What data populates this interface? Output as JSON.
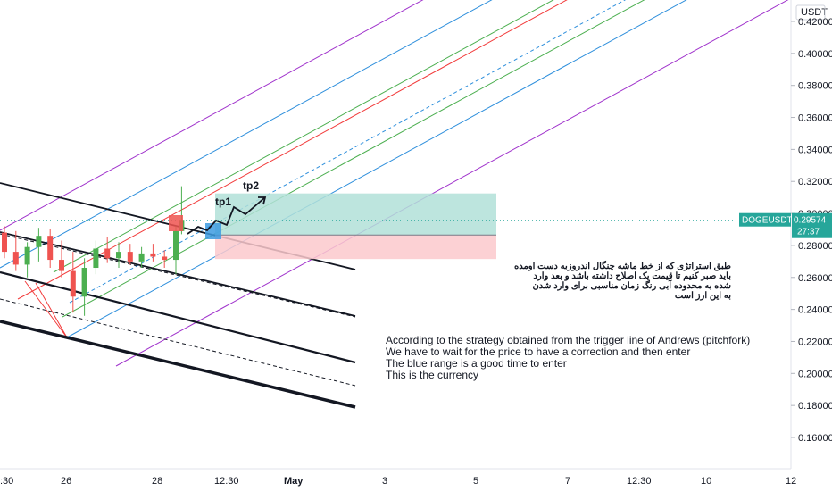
{
  "chart_data": {
    "type": "candlestick",
    "symbol": "DOGEUSDT",
    "currency": "USDT",
    "last_price": "0.29574",
    "countdown": "27:37",
    "y_ticks": [
      "0.42000",
      "0.40000",
      "0.38000",
      "0.36000",
      "0.34000",
      "0.32000",
      "0.30000",
      "0.28000",
      "0.26000",
      "0.24000",
      "0.22000",
      "0.20000",
      "0.18000",
      "0.16000"
    ],
    "x_ticks": [
      ":30",
      "26",
      "28",
      "12:30",
      "May",
      "3",
      "5",
      "7",
      "12:30",
      "10",
      "12"
    ],
    "ylim": [
      0.145,
      0.425
    ],
    "candles": [
      {
        "t": 0.0,
        "o": 0.288,
        "h": 0.292,
        "l": 0.272,
        "c": 0.276
      },
      {
        "t": 0.2,
        "o": 0.276,
        "h": 0.289,
        "l": 0.264,
        "c": 0.268
      },
      {
        "t": 0.4,
        "o": 0.268,
        "h": 0.282,
        "l": 0.26,
        "c": 0.279
      },
      {
        "t": 0.6,
        "o": 0.279,
        "h": 0.291,
        "l": 0.27,
        "c": 0.286
      },
      {
        "t": 0.8,
        "o": 0.286,
        "h": 0.29,
        "l": 0.266,
        "c": 0.271
      },
      {
        "t": 1.0,
        "o": 0.271,
        "h": 0.283,
        "l": 0.26,
        "c": 0.264
      },
      {
        "t": 1.2,
        "o": 0.264,
        "h": 0.276,
        "l": 0.238,
        "c": 0.248
      },
      {
        "t": 1.4,
        "o": 0.248,
        "h": 0.272,
        "l": 0.236,
        "c": 0.266
      },
      {
        "t": 1.6,
        "o": 0.266,
        "h": 0.283,
        "l": 0.262,
        "c": 0.278
      },
      {
        "t": 1.8,
        "o": 0.278,
        "h": 0.285,
        "l": 0.269,
        "c": 0.272
      },
      {
        "t": 2.0,
        "o": 0.272,
        "h": 0.282,
        "l": 0.266,
        "c": 0.276
      },
      {
        "t": 2.2,
        "o": 0.276,
        "h": 0.281,
        "l": 0.268,
        "c": 0.27
      },
      {
        "t": 2.4,
        "o": 0.27,
        "h": 0.279,
        "l": 0.266,
        "c": 0.275
      },
      {
        "t": 2.6,
        "o": 0.275,
        "h": 0.281,
        "l": 0.27,
        "c": 0.273
      },
      {
        "t": 2.8,
        "o": 0.273,
        "h": 0.277,
        "l": 0.266,
        "c": 0.271
      },
      {
        "t": 3.0,
        "o": 0.271,
        "h": 0.292,
        "l": 0.262,
        "c": 0.289
      },
      {
        "t": 3.1,
        "o": 0.289,
        "h": 0.317,
        "l": 0.287,
        "c": 0.296
      }
    ],
    "price_line": 0.29574,
    "trade_setup": {
      "profit_zone": [
        0.2865,
        0.3125
      ],
      "stop_zone": [
        0.2715,
        0.2865
      ],
      "entry": 0.2865,
      "labels": [
        "tp1",
        "tp2"
      ]
    },
    "annotations": {
      "english": [
        "According to the strategy obtained from the trigger line of Andrews (pitchfork)",
        "We have to wait for the price to have a correction and then enter",
        "The blue range is a good time to enter",
        "This is the currency"
      ],
      "persian": [
        "طبق استراتژی که از خط ماشه چنگال اندروزبه دست اومده",
        "باید صبر کنیم تا قیمت یک اصلاح داشته باشد و بعد وارد",
        "شده به محدوده آبی رنگ زمان مناسبی برای وارد شدن",
        "به این ارز است"
      ]
    },
    "colors": {
      "pitchfork_purple": "#a033cc",
      "pitchfork_blue": "#2e8fdc",
      "pitchfork_green": "#4caf50",
      "pitchfork_red": "#f23b3b",
      "candle_up": "#4caf50",
      "candle_down": "#ef5350",
      "price_tag": "#26a69a",
      "profit_fill": "#b2e0d8",
      "stop_fill": "#fbc9cc"
    }
  }
}
